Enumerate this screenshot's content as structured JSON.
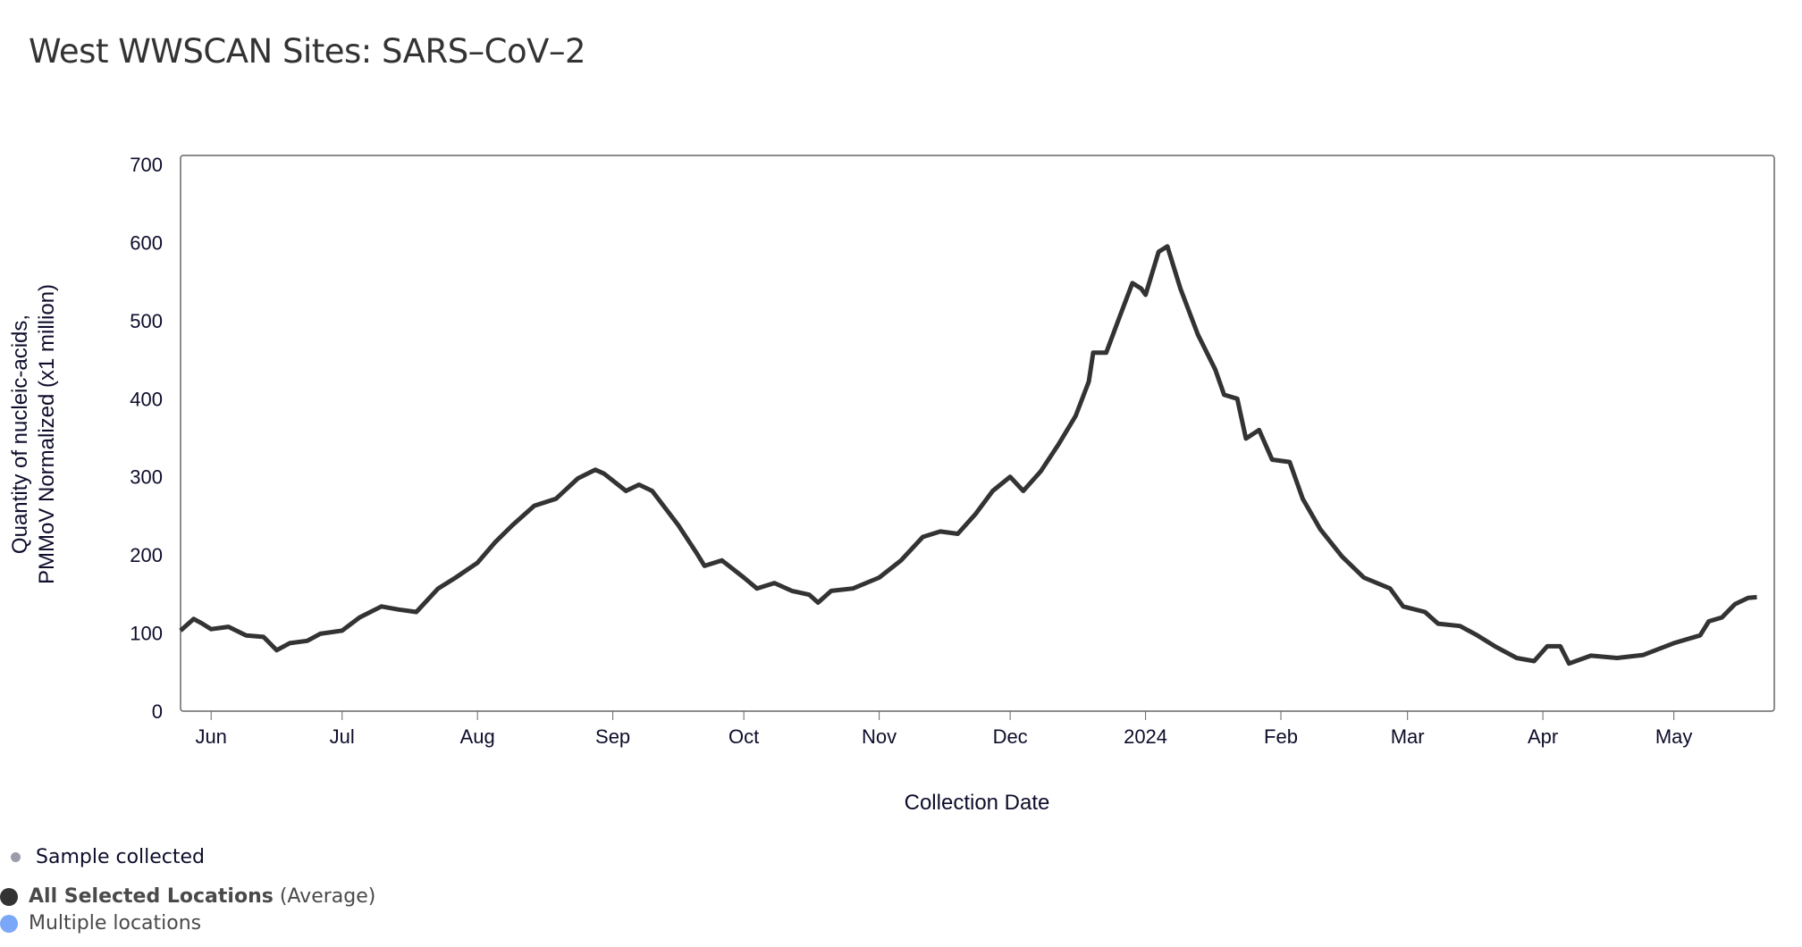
{
  "chart_data": {
    "type": "line",
    "title": "West WWSCAN Sites: SARS–CoV–2",
    "xlabel": "Collection Date",
    "ylabel": [
      "Quantity of nucleic-acids,",
      "PMMoV Normalized (x1 million)"
    ],
    "ylim": [
      0,
      700
    ],
    "yticks": [
      0,
      100,
      200,
      300,
      400,
      500,
      600,
      700
    ],
    "xlim": [
      "2023-05-25",
      "2024-05-24"
    ],
    "xticks": [
      {
        "date": "2023-06-01",
        "label": "Jun"
      },
      {
        "date": "2023-07-01",
        "label": "Jul"
      },
      {
        "date": "2023-08-01",
        "label": "Aug"
      },
      {
        "date": "2023-09-01",
        "label": "Sep"
      },
      {
        "date": "2023-10-01",
        "label": "Oct"
      },
      {
        "date": "2023-11-01",
        "label": "Nov"
      },
      {
        "date": "2023-12-01",
        "label": "Dec"
      },
      {
        "date": "2024-01-01",
        "label": "2024"
      },
      {
        "date": "2024-02-01",
        "label": "Feb"
      },
      {
        "date": "2024-03-01",
        "label": "Mar"
      },
      {
        "date": "2024-04-01",
        "label": "Apr"
      },
      {
        "date": "2024-05-01",
        "label": "May"
      }
    ],
    "grid": false,
    "series": [
      {
        "name": "All Selected Locations (Average)",
        "color": "#333333",
        "points": [
          [
            "2023-05-25",
            103
          ],
          [
            "2023-05-28",
            118
          ],
          [
            "2023-05-30",
            112
          ],
          [
            "2023-06-01",
            105
          ],
          [
            "2023-06-05",
            108
          ],
          [
            "2023-06-09",
            97
          ],
          [
            "2023-06-13",
            95
          ],
          [
            "2023-06-16",
            78
          ],
          [
            "2023-06-19",
            87
          ],
          [
            "2023-06-23",
            90
          ],
          [
            "2023-06-26",
            99
          ],
          [
            "2023-07-01",
            103
          ],
          [
            "2023-07-05",
            120
          ],
          [
            "2023-07-10",
            134
          ],
          [
            "2023-07-14",
            130
          ],
          [
            "2023-07-18",
            127
          ],
          [
            "2023-07-23",
            157
          ],
          [
            "2023-07-27",
            171
          ],
          [
            "2023-08-01",
            190
          ],
          [
            "2023-08-05",
            216
          ],
          [
            "2023-08-09",
            238
          ],
          [
            "2023-08-14",
            263
          ],
          [
            "2023-08-19",
            272
          ],
          [
            "2023-08-24",
            298
          ],
          [
            "2023-08-28",
            309
          ],
          [
            "2023-08-30",
            304
          ],
          [
            "2023-09-04",
            282
          ],
          [
            "2023-09-07",
            290
          ],
          [
            "2023-09-10",
            282
          ],
          [
            "2023-09-16",
            238
          ],
          [
            "2023-09-20",
            204
          ],
          [
            "2023-09-22",
            186
          ],
          [
            "2023-09-26",
            193
          ],
          [
            "2023-10-01",
            171
          ],
          [
            "2023-10-04",
            157
          ],
          [
            "2023-10-08",
            164
          ],
          [
            "2023-10-12",
            154
          ],
          [
            "2023-10-16",
            149
          ],
          [
            "2023-10-18",
            139
          ],
          [
            "2023-10-21",
            154
          ],
          [
            "2023-10-26",
            157
          ],
          [
            "2023-11-01",
            171
          ],
          [
            "2023-11-06",
            193
          ],
          [
            "2023-11-11",
            223
          ],
          [
            "2023-11-15",
            230
          ],
          [
            "2023-11-19",
            227
          ],
          [
            "2023-11-23",
            252
          ],
          [
            "2023-11-27",
            282
          ],
          [
            "2023-12-01",
            300
          ],
          [
            "2023-12-04",
            282
          ],
          [
            "2023-12-08",
            307
          ],
          [
            "2023-12-12",
            341
          ],
          [
            "2023-12-16",
            378
          ],
          [
            "2023-12-19",
            422
          ],
          [
            "2023-12-20",
            459
          ],
          [
            "2023-12-23",
            459
          ],
          [
            "2023-12-26",
            504
          ],
          [
            "2023-12-29",
            548
          ],
          [
            "2023-12-31",
            541
          ],
          [
            "2024-01-01",
            533
          ],
          [
            "2024-01-04",
            588
          ],
          [
            "2024-01-06",
            595
          ],
          [
            "2024-01-09",
            541
          ],
          [
            "2024-01-13",
            482
          ],
          [
            "2024-01-17",
            437
          ],
          [
            "2024-01-19",
            405
          ],
          [
            "2024-01-22",
            400
          ],
          [
            "2024-01-24",
            349
          ],
          [
            "2024-01-27",
            360
          ],
          [
            "2024-01-30",
            322
          ],
          [
            "2024-02-03",
            319
          ],
          [
            "2024-02-06",
            272
          ],
          [
            "2024-02-10",
            233
          ],
          [
            "2024-02-15",
            198
          ],
          [
            "2024-02-20",
            171
          ],
          [
            "2024-02-26",
            157
          ],
          [
            "2024-02-29",
            134
          ],
          [
            "2024-03-05",
            127
          ],
          [
            "2024-03-08",
            112
          ],
          [
            "2024-03-13",
            109
          ],
          [
            "2024-03-17",
            97
          ],
          [
            "2024-03-21",
            83
          ],
          [
            "2024-03-26",
            68
          ],
          [
            "2024-03-30",
            64
          ],
          [
            "2024-04-02",
            83
          ],
          [
            "2024-04-05",
            83
          ],
          [
            "2024-04-07",
            61
          ],
          [
            "2024-04-12",
            71
          ],
          [
            "2024-04-18",
            68
          ],
          [
            "2024-04-24",
            72
          ],
          [
            "2024-05-01",
            87
          ],
          [
            "2024-05-07",
            97
          ],
          [
            "2024-05-09",
            115
          ],
          [
            "2024-05-12",
            120
          ],
          [
            "2024-05-15",
            137
          ],
          [
            "2024-05-18",
            145
          ],
          [
            "2024-05-20",
            146
          ]
        ]
      }
    ]
  },
  "legend": {
    "sample": {
      "label": "Sample collected",
      "color": "#9a9caa"
    },
    "average": {
      "label_bold": "All Selected Locations",
      "label_rest": " (Average)",
      "color": "#333333"
    },
    "multiple": {
      "label": "Multiple locations",
      "color": "#7aa7f7"
    }
  }
}
